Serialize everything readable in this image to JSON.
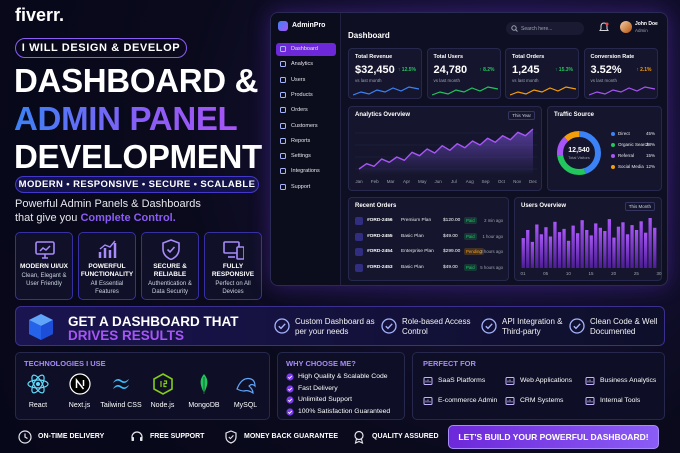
{
  "brand": "fiverr.",
  "hero": {
    "badge": "I WILL DESIGN & DEVELOP",
    "title_lines": [
      "DASHBOARD &",
      "ADMIN PANEL",
      "DEVELOPMENT"
    ],
    "tagline": "MODERN • RESPONSIVE • SECURE • SCALABLE",
    "description": "Powerful Admin Panels & Dashboards that give you",
    "highlight": "Complete Control."
  },
  "features": [
    {
      "title": "MODERN UI/UX",
      "text": "Clean, Elegant & User Friendly"
    },
    {
      "title": "POWERFUL FUNCTIONALITY",
      "text": "All Essential Features"
    },
    {
      "title": "SECURE & RELIABLE",
      "text": "Authentication & Data Security"
    },
    {
      "title": "FULLY RESPONSIVE",
      "text": "Perfect on All Devices"
    }
  ],
  "dashboard": {
    "app": "AdminPro",
    "search": "Search here...",
    "user": "John Doe",
    "role": "Admin",
    "page_title": "Dashboard",
    "nav": [
      "Dashboard",
      "Analytics",
      "Users",
      "Products",
      "Orders",
      "Customers",
      "Reports",
      "Settings",
      "Integrations",
      "Support"
    ],
    "stats": [
      {
        "label": "Total Revenue",
        "value": "$32,450",
        "change": "↑ 12.5%",
        "note": "vs last month",
        "color": "#22c55e"
      },
      {
        "label": "Total Users",
        "value": "24,780",
        "change": "↑ 8.2%",
        "note": "vs last month",
        "color": "#22c55e"
      },
      {
        "label": "Total Orders",
        "value": "1,245",
        "change": "↑ 15.3%",
        "note": "vs last month",
        "color": "#22c55e"
      },
      {
        "label": "Conversion Rate",
        "value": "3.52%",
        "change": "↑ 2.1%",
        "note": "vs last month",
        "color": "#f59e0b"
      }
    ],
    "analytics": {
      "title": "Analytics Overview",
      "filter": "This Year",
      "months": [
        "Jan",
        "Feb",
        "Mar",
        "Apr",
        "May",
        "Jun",
        "Jul",
        "Aug",
        "Sep",
        "Oct",
        "Nov",
        "Dec"
      ],
      "values": [
        20,
        28,
        24,
        35,
        30,
        38,
        33,
        45,
        40,
        50,
        44,
        55,
        48,
        58,
        52,
        62,
        56,
        66,
        60,
        70,
        64,
        75,
        70,
        80
      ]
    },
    "traffic": {
      "title": "Traffic Source",
      "total": "12,540",
      "total_label": "Total Visitors",
      "sources": [
        {
          "name": "Direct",
          "share": {
            "value": 45,
            "label": "45%"
          },
          "color": "#3b82f6"
        },
        {
          "name": "Organic Search",
          "share": {
            "value": 28,
            "label": "28%"
          },
          "color": "#22c55e"
        },
        {
          "name": "Referral",
          "share": {
            "value": 15,
            "label": "15%"
          },
          "color": "#a855f7"
        },
        {
          "name": "Social Media",
          "share": {
            "value": 12,
            "label": "12%"
          },
          "color": "#f59e0b"
        }
      ]
    },
    "orders": {
      "title": "Recent Orders",
      "rows": [
        {
          "id": "#ORD-2456",
          "plan": "Premium Plan",
          "amount": "$120.00",
          "status": "Paid",
          "time": "2 min ago",
          "color": "#22c55e"
        },
        {
          "id": "#ORD-2455",
          "plan": "Basic Plan",
          "amount": "$49.00",
          "status": "Paid",
          "time": "1 hour ago",
          "color": "#22c55e"
        },
        {
          "id": "#ORD-2454",
          "plan": "Enterprise Plan",
          "amount": "$299.00",
          "status": "Pending",
          "time": "3 hours ago",
          "color": "#f59e0b"
        },
        {
          "id": "#ORD-2453",
          "plan": "Basic Plan",
          "amount": "$49.00",
          "status": "Paid",
          "time": "5 hours ago",
          "color": "#22c55e"
        }
      ]
    },
    "users": {
      "title": "Users Overview",
      "filter": "This Month",
      "x_labels": [
        "01",
        "05",
        "10",
        "15",
        "20",
        "25",
        "30"
      ],
      "values": [
        55,
        70,
        48,
        80,
        62,
        75,
        58,
        85,
        66,
        72,
        50,
        78,
        64,
        88,
        70,
        60,
        82,
        74,
        68,
        90,
        56,
        76,
        84,
        62,
        79,
        70,
        86,
        65,
        92,
        74
      ]
    }
  },
  "banner": {
    "title": "GET A DASHBOARD THAT",
    "highlight": "DRIVES RESULTS",
    "benefits": [
      "Custom Dashboard as per your needs",
      "Role-based Access Control",
      "API Integration & Third-party",
      "Clean Code & Well Documented"
    ]
  },
  "technologies": {
    "title": "TECHNOLOGIES I USE",
    "items": [
      "React",
      "Next.js",
      "Tailwind CSS",
      "Node.js",
      "MongoDB",
      "MySQL"
    ]
  },
  "why": {
    "title": "WHY CHOOSE ME?",
    "items": [
      "High Quality & Scalable Code",
      "Fast Delivery",
      "Unlimited Support",
      "100% Satisfaction Guaranteed"
    ]
  },
  "perfect_for": {
    "title": "PERFECT FOR",
    "items": [
      "SaaS Platforms",
      "Web Applications",
      "Business Analytics",
      "E-commerce Admin",
      "CRM Systems",
      "Internal Tools"
    ]
  },
  "guarantees": [
    "ON-TIME DELIVERY",
    "FREE SUPPORT",
    "MONEY BACK GUARANTEE",
    "QUALITY ASSURED"
  ],
  "cta": "LET'S BUILD YOUR POWERFUL DASHBOARD!"
}
